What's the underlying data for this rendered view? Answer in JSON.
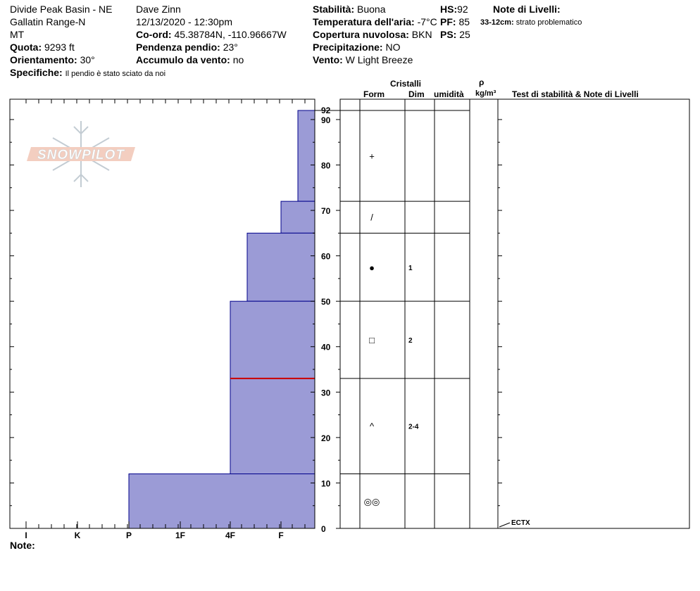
{
  "header": {
    "location": "Divide Peak Basin - NE",
    "range": "Gallatin Range-N",
    "state": "MT",
    "observer": "Dave Zinn",
    "datetime": "12/13/2020 - 12:30pm",
    "coord_label": "Co-ord:",
    "coord_value": "45.38784N, -110.96667W",
    "elevation_label": "Quota:",
    "elevation_value": "9293 ft",
    "slope_label": "Pendenza pendio:",
    "slope_value": "23°",
    "aspect_label": "Orientamento:",
    "aspect_value": "30°",
    "wind_loading_label": "Accumulo da vento:",
    "wind_loading_value": "no",
    "specifics_label": "Specifiche:",
    "specifics_value": "Il pendio è stato sciato da noi",
    "stability_label": "Stabilità:",
    "stability_value": "Buona",
    "air_temp_label": "Temperatura dell'aria:",
    "air_temp_value": "-7°C",
    "cloud_label": "Copertura nuvolosa:",
    "cloud_value": "BKN",
    "precip_label": "Precipitazione:",
    "precip_value": "NO",
    "wind_label": "Vento:",
    "wind_value": "W Light Breeze",
    "hs_label": "HS:",
    "hs_value": "92",
    "pf_label": "PF:",
    "pf_value": "85",
    "ps_label": "PS:",
    "ps_value": "25",
    "layer_notes_title": "Note di Livelli:",
    "layer_note_depth": "33-12cm:",
    "layer_note_text": "strato problematico"
  },
  "logo_text": "SNOWPILOT",
  "columns": {
    "crystals": "Cristalli",
    "form": "Form",
    "dim": "Dim",
    "humidity": "umidità",
    "rho": "ρ",
    "density_unit": "kg/m³",
    "stability_notes": "Test di stabilità & Note di Livelli"
  },
  "note_label": "Note:",
  "chart_data": {
    "type": "bar",
    "hardness_scale": [
      "I",
      "K",
      "P",
      "1F",
      "4F",
      "F"
    ],
    "depth_axis": {
      "min": 0,
      "max": 92,
      "ticks": [
        0,
        10,
        20,
        30,
        40,
        50,
        60,
        70,
        80,
        90
      ],
      "top_label": "92"
    },
    "layers": [
      {
        "top": 92,
        "bottom": 72,
        "hardness": "F+",
        "form": "+",
        "dim": ""
      },
      {
        "top": 72,
        "bottom": 65,
        "hardness": "F-",
        "form": "/",
        "dim": ""
      },
      {
        "top": 65,
        "bottom": 50,
        "hardness": "4F-",
        "form": "●",
        "dim": "1"
      },
      {
        "top": 50,
        "bottom": 33,
        "hardness": "4F",
        "form": "□",
        "dim": "2"
      },
      {
        "top": 33,
        "bottom": 12,
        "hardness": "4F",
        "form": "^",
        "dim": "2-4"
      },
      {
        "top": 12,
        "bottom": 0,
        "hardness": "P",
        "form": "◎◎",
        "dim": ""
      }
    ],
    "problem_layer_depth": 33,
    "stability_tests": [
      {
        "depth": 0,
        "label": "ECTX"
      }
    ],
    "colors": {
      "fill": "#9b9bd6",
      "edge": "#00008b",
      "problem": "#cc0000"
    }
  }
}
